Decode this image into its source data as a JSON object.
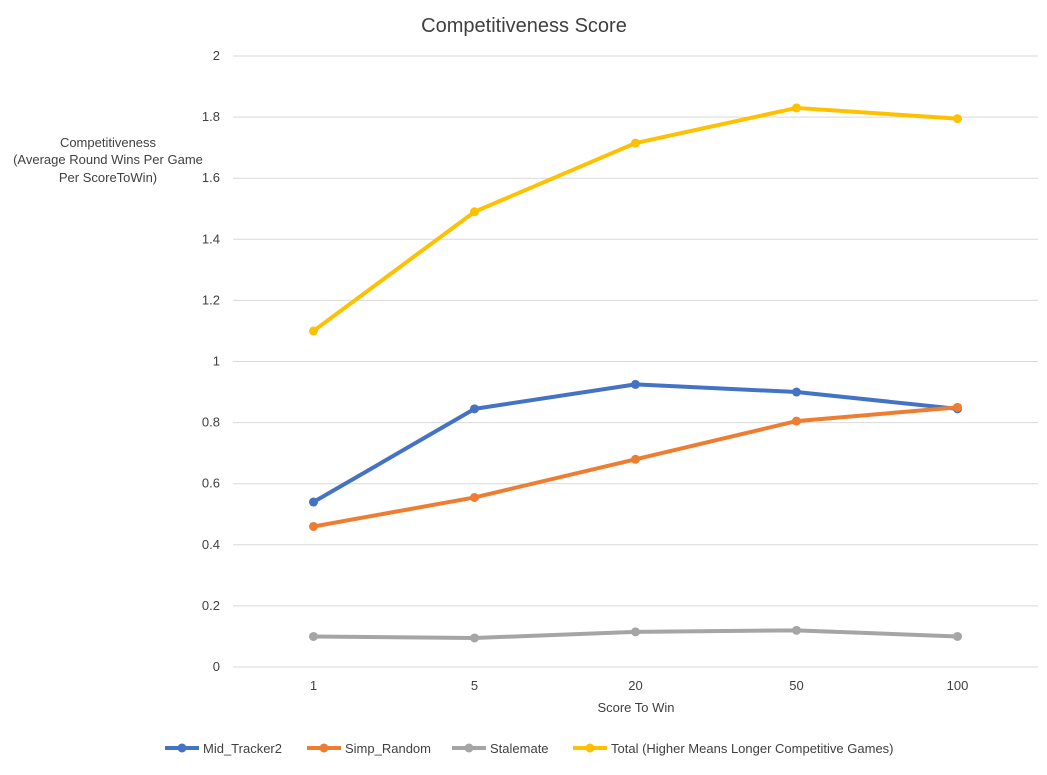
{
  "chart_data": {
    "type": "line",
    "title": "Competitiveness Score",
    "xlabel": "Score To Win",
    "ylabel_lines": [
      "Competitiveness",
      "(Average Round Wins Per Game",
      "Per ScoreToWin)"
    ],
    "categories": [
      "1",
      "5",
      "20",
      "50",
      "100"
    ],
    "ylim": [
      0,
      2
    ],
    "yticks": [
      "0",
      "0.2",
      "0.4",
      "0.6",
      "0.8",
      "1",
      "1.2",
      "1.4",
      "1.6",
      "1.8",
      "2"
    ],
    "grid": true,
    "legend_position": "bottom",
    "series": [
      {
        "name": "Mid_Tracker2",
        "color": "#4472C4",
        "values": [
          0.54,
          0.845,
          0.925,
          0.9,
          0.845
        ]
      },
      {
        "name": "Simp_Random",
        "color": "#ED7D31",
        "values": [
          0.46,
          0.555,
          0.68,
          0.805,
          0.85
        ]
      },
      {
        "name": "Stalemate",
        "color": "#A5A5A5",
        "values": [
          0.1,
          0.095,
          0.115,
          0.12,
          0.1
        ]
      },
      {
        "name": "Total (Higher Means Longer Competitive Games)",
        "color": "#FFC000",
        "values": [
          1.1,
          1.49,
          1.715,
          1.83,
          1.795
        ]
      }
    ]
  }
}
